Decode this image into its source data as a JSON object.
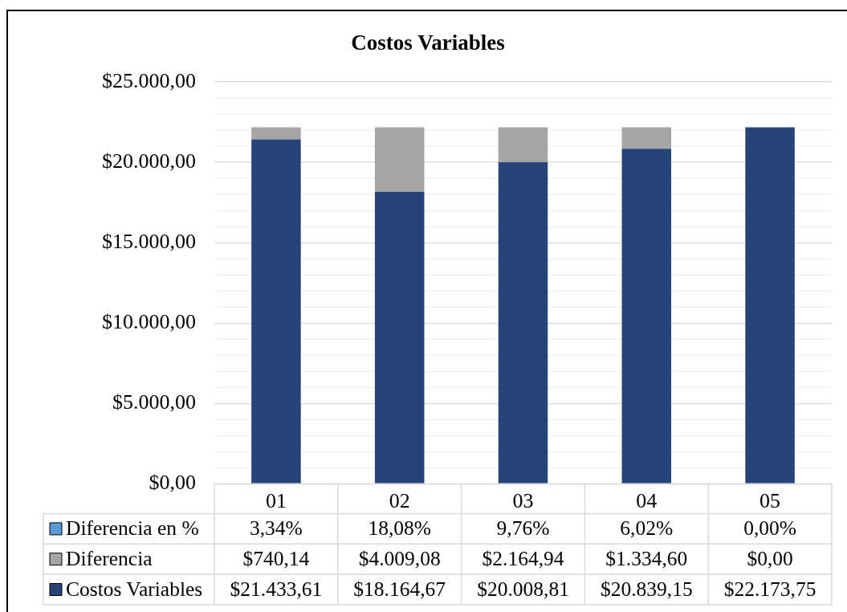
{
  "chart_data": {
    "type": "bar",
    "title": "Costos Variables",
    "stacked": true,
    "grid": "y",
    "legend": "bottom",
    "categories": [
      "01",
      "02",
      "03",
      "04",
      "05"
    ],
    "ylim": [
      0,
      25000
    ],
    "yticks": [
      {
        "value": 0,
        "label": "$0,00"
      },
      {
        "value": 1000,
        "label": null
      },
      {
        "value": 2000,
        "label": null
      },
      {
        "value": 3000,
        "label": null
      },
      {
        "value": 4000,
        "label": null
      },
      {
        "value": 5000,
        "label": "$5.000,00"
      },
      {
        "value": 6000,
        "label": null
      },
      {
        "value": 7000,
        "label": null
      },
      {
        "value": 8000,
        "label": null
      },
      {
        "value": 9000,
        "label": null
      },
      {
        "value": 10000,
        "label": "$10.000,00"
      },
      {
        "value": 11000,
        "label": null
      },
      {
        "value": 12000,
        "label": null
      },
      {
        "value": 13000,
        "label": null
      },
      {
        "value": 14000,
        "label": null
      },
      {
        "value": 15000,
        "label": "$15.000,00"
      },
      {
        "value": 16000,
        "label": null
      },
      {
        "value": 17000,
        "label": null
      },
      {
        "value": 18000,
        "label": null
      },
      {
        "value": 19000,
        "label": null
      },
      {
        "value": 20000,
        "label": "$20.000,00"
      },
      {
        "value": 21000,
        "label": null
      },
      {
        "value": 22000,
        "label": null
      },
      {
        "value": 23000,
        "label": null
      },
      {
        "value": 24000,
        "label": null
      },
      {
        "value": 25000,
        "label": "$25.000,00"
      }
    ],
    "series": [
      {
        "name": "Costos Variables",
        "color": "#264478",
        "values": [
          21433.61,
          18164.67,
          20008.81,
          20839.15,
          22173.75
        ],
        "value_labels": [
          "$21.433,61",
          "$18.164,67",
          "$20.008,81",
          "$20.839,15",
          "$22.173,75"
        ]
      },
      {
        "name": "Diferencia",
        "color": "#a5a5a5",
        "values": [
          740.14,
          4009.08,
          2164.94,
          1334.6,
          0
        ],
        "value_labels": [
          "$740,14",
          "$4.009,08",
          "$2.164,94",
          "$1.334,60",
          "$0,00"
        ]
      },
      {
        "name": "Diferencia en %",
        "color": "#5b9bd5",
        "values": [
          0.0334,
          0.1808,
          0.0976,
          0.0602,
          0
        ],
        "value_labels": [
          "3,34%",
          "18,08%",
          "9,76%",
          "6,02%",
          "0,00%"
        ]
      }
    ]
  }
}
